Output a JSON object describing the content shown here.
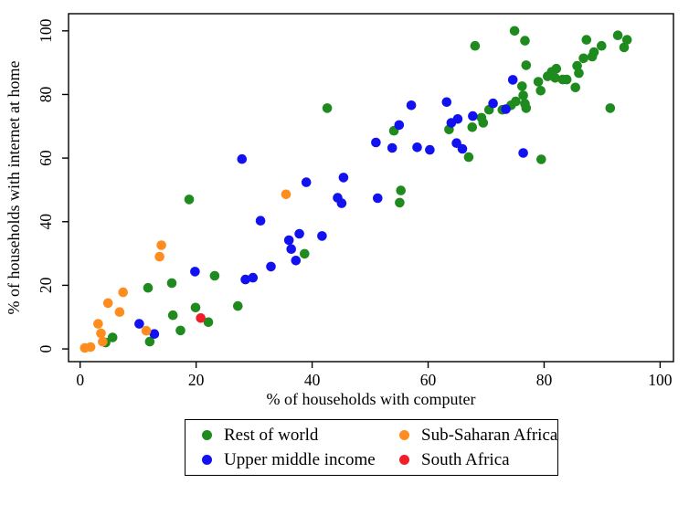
{
  "chart_data": {
    "type": "scatter",
    "title": "",
    "xlabel": "% of households with computer",
    "ylabel": "% of households with internet at home",
    "xticks": [
      0,
      20,
      40,
      60,
      80,
      100
    ],
    "yticks": [
      0,
      20,
      40,
      60,
      80,
      100
    ],
    "xlim": [
      -2,
      102.3
    ],
    "ylim": [
      -4,
      105.4
    ],
    "grid": false,
    "legend_position": "bottom-outside",
    "marker": "filled-circle",
    "axis_color": "#000000",
    "series": [
      {
        "name": "Rest of world",
        "color": "#1F8B1F",
        "points": [
          [
            4.4,
            2.0
          ],
          [
            5.6,
            3.6
          ],
          [
            12.0,
            2.3
          ],
          [
            16.0,
            10.6
          ],
          [
            17.3,
            5.8
          ],
          [
            22.1,
            8.4
          ],
          [
            19.9,
            13.0
          ],
          [
            27.2,
            13.5
          ],
          [
            11.7,
            19.2
          ],
          [
            15.8,
            20.7
          ],
          [
            23.2,
            23.0
          ],
          [
            18.8,
            47.0
          ],
          [
            38.7,
            29.9
          ],
          [
            55.3,
            49.8
          ],
          [
            55.1,
            46.0
          ],
          [
            42.6,
            75.7
          ],
          [
            54.1,
            68.6
          ],
          [
            63.6,
            69.0
          ],
          [
            67.6,
            69.7
          ],
          [
            67.0,
            60.3
          ],
          [
            79.5,
            59.6
          ],
          [
            68.1,
            95.3
          ],
          [
            74.9,
            100.0
          ],
          [
            76.7,
            96.9
          ],
          [
            87.3,
            97.2
          ],
          [
            92.7,
            98.6
          ],
          [
            94.3,
            97.2
          ],
          [
            93.8,
            94.8
          ],
          [
            89.9,
            95.3
          ],
          [
            88.6,
            93.3
          ],
          [
            88.3,
            91.9
          ],
          [
            86.8,
            91.4
          ],
          [
            85.7,
            89.0
          ],
          [
            86.0,
            86.7
          ],
          [
            82.1,
            88.1
          ],
          [
            81.3,
            87.1
          ],
          [
            80.6,
            85.7
          ],
          [
            81.9,
            85.2
          ],
          [
            83.2,
            84.7
          ],
          [
            83.9,
            84.7
          ],
          [
            85.4,
            82.2
          ],
          [
            79.0,
            84.0
          ],
          [
            79.4,
            81.2
          ],
          [
            76.2,
            82.6
          ],
          [
            76.9,
            89.2
          ],
          [
            76.4,
            79.7
          ],
          [
            75.1,
            77.8
          ],
          [
            74.3,
            76.6
          ],
          [
            76.7,
            77.1
          ],
          [
            76.9,
            75.7
          ],
          [
            72.8,
            75.2
          ],
          [
            70.5,
            75.2
          ],
          [
            69.2,
            72.7
          ],
          [
            69.5,
            71.1
          ],
          [
            91.4,
            75.7
          ]
        ]
      },
      {
        "name": "Upper middle income",
        "color": "#1212F0",
        "points": [
          [
            10.2,
            7.9
          ],
          [
            12.8,
            4.7
          ],
          [
            19.8,
            24.3
          ],
          [
            28.5,
            21.8
          ],
          [
            29.8,
            22.4
          ],
          [
            32.9,
            25.9
          ],
          [
            31.1,
            40.3
          ],
          [
            27.9,
            59.7
          ],
          [
            36.0,
            34.2
          ],
          [
            36.4,
            31.4
          ],
          [
            37.2,
            27.8
          ],
          [
            37.8,
            36.2
          ],
          [
            41.7,
            35.5
          ],
          [
            39.0,
            52.4
          ],
          [
            45.4,
            53.9
          ],
          [
            44.4,
            47.5
          ],
          [
            45.1,
            45.8
          ],
          [
            51.3,
            47.4
          ],
          [
            51.0,
            64.9
          ],
          [
            53.8,
            63.2
          ],
          [
            55.0,
            70.4
          ],
          [
            58.1,
            63.4
          ],
          [
            60.3,
            62.6
          ],
          [
            64.9,
            64.7
          ],
          [
            65.9,
            62.9
          ],
          [
            57.1,
            76.6
          ],
          [
            63.2,
            77.6
          ],
          [
            64.0,
            71.1
          ],
          [
            65.1,
            72.3
          ],
          [
            67.7,
            73.2
          ],
          [
            71.2,
            77.2
          ],
          [
            73.4,
            75.4
          ],
          [
            74.6,
            84.6
          ],
          [
            76.4,
            61.6
          ]
        ]
      },
      {
        "name": "Sub-Saharan Africa",
        "color": "#FF8C1E",
        "points": [
          [
            0.8,
            0.3
          ],
          [
            1.8,
            0.6
          ],
          [
            3.1,
            7.9
          ],
          [
            3.6,
            4.9
          ],
          [
            3.9,
            2.3
          ],
          [
            11.4,
            5.7
          ],
          [
            4.8,
            14.4
          ],
          [
            6.8,
            11.6
          ],
          [
            7.4,
            17.8
          ],
          [
            14.0,
            32.6
          ],
          [
            13.7,
            29.0
          ],
          [
            35.5,
            48.6
          ]
        ]
      },
      {
        "name": "South Africa",
        "color": "#F01E28",
        "points": [
          [
            20.8,
            9.7
          ]
        ]
      }
    ]
  }
}
